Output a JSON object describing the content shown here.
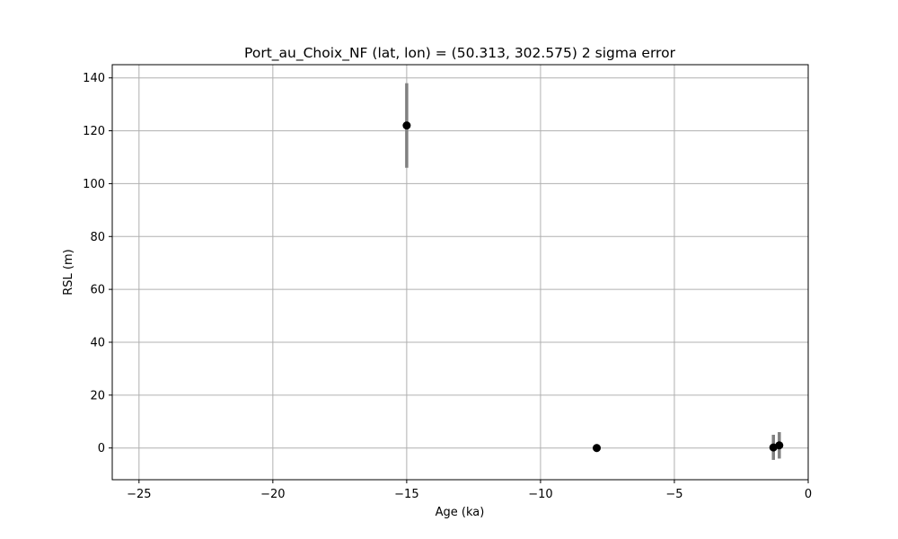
{
  "chart_data": {
    "type": "scatter",
    "title": "Port_au_Choix_NF (lat, lon) = (50.313, 302.575)  2 sigma error",
    "xlabel": "Age (ka)",
    "ylabel": "RSL (m)",
    "xlim": [
      -26,
      0
    ],
    "ylim": [
      -12,
      145
    ],
    "xticks": [
      -25,
      -20,
      -15,
      -10,
      -5,
      0
    ],
    "xtick_labels": [
      "−25",
      "−20",
      "−15",
      "−10",
      "−5",
      "0"
    ],
    "yticks": [
      0,
      20,
      40,
      60,
      80,
      100,
      120,
      140
    ],
    "ytick_labels": [
      "0",
      "20",
      "40",
      "60",
      "80",
      "100",
      "120",
      "140"
    ],
    "grid": true,
    "legend": "none",
    "marker_color": "#000000",
    "errorbar_color": "#808080",
    "points": [
      {
        "x": -15.0,
        "y": 122.0,
        "err_low": 106.0,
        "err_high": 138.0
      },
      {
        "x": -7.9,
        "y": 0.0,
        "err_low": -1.5,
        "err_high": 1.5
      },
      {
        "x": -1.3,
        "y": 0.2,
        "err_low": -4.5,
        "err_high": 5.0
      },
      {
        "x": -1.08,
        "y": 1.0,
        "err_low": -4.0,
        "err_high": 6.0
      }
    ]
  }
}
